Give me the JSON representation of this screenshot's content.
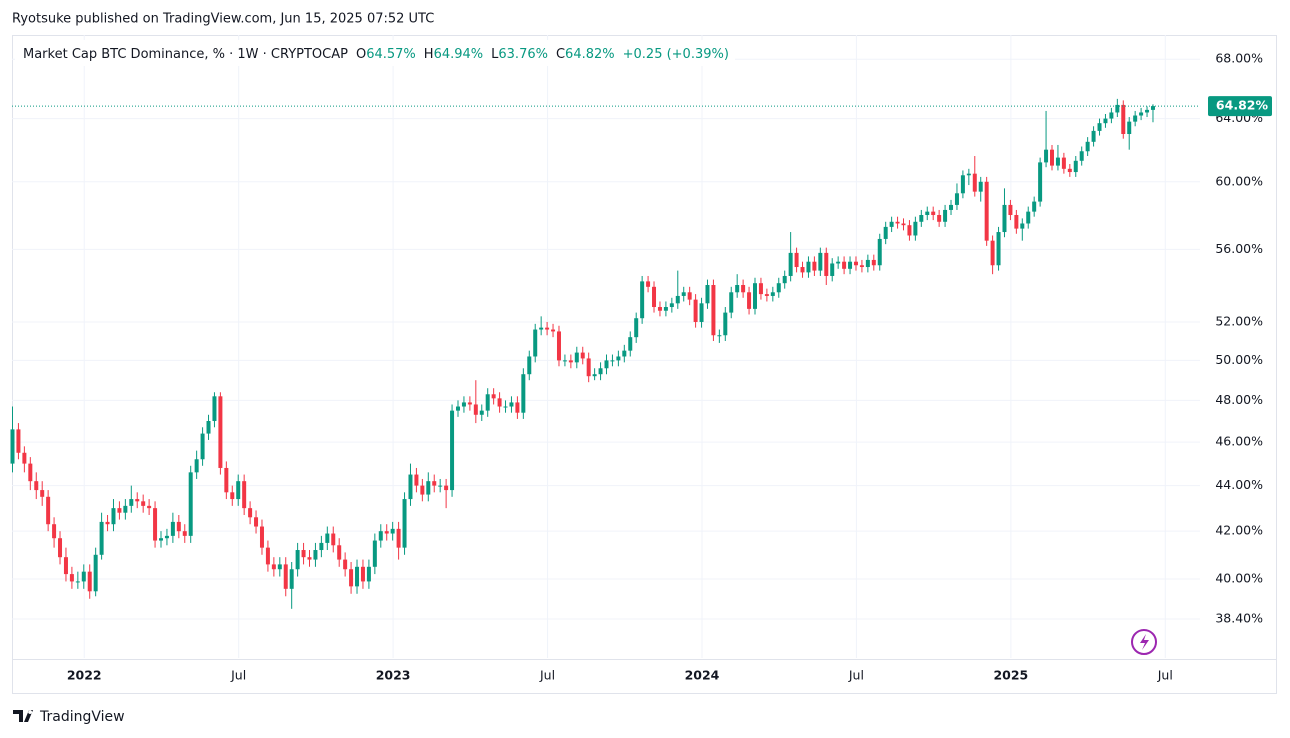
{
  "attribution": "Ryotsuke published on TradingView.com, Jun 15, 2025 07:52 UTC",
  "brand": "TradingView",
  "chart_data": {
    "type": "candlestick",
    "title": "Market Cap BTC Dominance, % · 1W · CRYPTOCAP",
    "legend_values": [
      {
        "label": "O",
        "value": "64.57%"
      },
      {
        "label": "H",
        "value": "64.94%"
      },
      {
        "label": "L",
        "value": "63.76%"
      },
      {
        "label": "C",
        "value": "64.82%"
      }
    ],
    "change": "+0.25 (+0.39%)",
    "last_price_label": "64.82%",
    "up_color": "#089981",
    "down_color": "#f23645",
    "log_scale": true,
    "grid": true,
    "ylim": [
      36.9,
      69.7
    ],
    "yticks": [
      {
        "value": 38.4,
        "label": "38.40%"
      },
      {
        "value": 40,
        "label": "40.00%"
      },
      {
        "value": 42,
        "label": "42.00%"
      },
      {
        "value": 44,
        "label": "44.00%"
      },
      {
        "value": 46,
        "label": "46.00%"
      },
      {
        "value": 48,
        "label": "48.00%"
      },
      {
        "value": 50,
        "label": "50.00%"
      },
      {
        "value": 52,
        "label": "52.00%"
      },
      {
        "value": 56,
        "label": "56.00%"
      },
      {
        "value": 60,
        "label": "60.00%"
      },
      {
        "value": 64,
        "label": "64.00%"
      },
      {
        "value": 68,
        "label": "68.00%"
      }
    ],
    "xlim": [
      0,
      200
    ],
    "xticks": [
      {
        "value": 13,
        "label": "2022"
      },
      {
        "value": 39,
        "label": "Jul"
      },
      {
        "value": 65,
        "label": "2023"
      },
      {
        "value": 91,
        "label": "Jul"
      },
      {
        "value": 117,
        "label": "2024"
      },
      {
        "value": 143,
        "label": "Jul"
      },
      {
        "value": 169,
        "label": "2025"
      },
      {
        "value": 195,
        "label": "Jul"
      }
    ],
    "ohlc": [
      [
        45.0,
        47.7,
        44.6,
        46.6
      ],
      [
        46.6,
        46.9,
        45.2,
        45.5
      ],
      [
        45.5,
        45.8,
        44.6,
        45.0
      ],
      [
        45.0,
        45.3,
        43.8,
        44.2
      ],
      [
        44.2,
        44.6,
        43.4,
        43.8
      ],
      [
        43.8,
        44.2,
        43.1,
        43.5
      ],
      [
        43.5,
        43.8,
        42.0,
        42.3
      ],
      [
        42.3,
        42.6,
        41.3,
        41.7
      ],
      [
        41.7,
        42.0,
        40.6,
        40.9
      ],
      [
        40.9,
        41.3,
        39.9,
        40.2
      ],
      [
        40.2,
        40.5,
        39.6,
        39.9
      ],
      [
        39.9,
        40.3,
        39.6,
        39.9
      ],
      [
        39.9,
        40.6,
        39.6,
        40.3
      ],
      [
        40.3,
        40.6,
        39.2,
        39.5
      ],
      [
        39.5,
        41.3,
        39.3,
        41.0
      ],
      [
        41.0,
        42.8,
        40.8,
        42.4
      ],
      [
        42.4,
        42.7,
        42.0,
        42.3
      ],
      [
        42.3,
        43.4,
        42.0,
        43.0
      ],
      [
        43.0,
        43.3,
        42.5,
        42.8
      ],
      [
        42.8,
        43.4,
        42.5,
        43.1
      ],
      [
        43.1,
        44.0,
        42.8,
        43.4
      ],
      [
        43.4,
        43.7,
        43.0,
        43.3
      ],
      [
        43.3,
        43.6,
        42.8,
        43.1
      ],
      [
        43.1,
        43.4,
        42.7,
        43.0
      ],
      [
        43.0,
        43.3,
        41.3,
        41.6
      ],
      [
        41.6,
        42.0,
        41.3,
        41.7
      ],
      [
        41.7,
        42.1,
        41.4,
        41.8
      ],
      [
        41.8,
        42.8,
        41.5,
        42.4
      ],
      [
        42.4,
        42.7,
        41.7,
        42.0
      ],
      [
        42.0,
        42.3,
        41.5,
        41.8
      ],
      [
        41.8,
        44.9,
        41.5,
        44.6
      ],
      [
        44.6,
        45.6,
        44.3,
        45.2
      ],
      [
        45.2,
        46.7,
        44.9,
        46.4
      ],
      [
        46.4,
        47.3,
        46.1,
        47.0
      ],
      [
        47.0,
        48.4,
        46.7,
        48.2
      ],
      [
        48.2,
        48.4,
        44.5,
        44.8
      ],
      [
        44.8,
        45.1,
        43.4,
        43.7
      ],
      [
        43.7,
        44.0,
        43.1,
        43.4
      ],
      [
        43.4,
        44.5,
        43.1,
        44.2
      ],
      [
        44.2,
        44.5,
        42.7,
        43.0
      ],
      [
        43.0,
        43.3,
        42.3,
        42.6
      ],
      [
        42.6,
        42.9,
        41.9,
        42.2
      ],
      [
        42.2,
        42.5,
        41.0,
        41.3
      ],
      [
        41.3,
        41.6,
        40.3,
        40.6
      ],
      [
        40.6,
        40.9,
        40.1,
        40.4
      ],
      [
        40.4,
        40.9,
        40.1,
        40.6
      ],
      [
        40.6,
        40.9,
        39.3,
        39.6
      ],
      [
        39.6,
        40.7,
        38.8,
        40.4
      ],
      [
        40.4,
        41.5,
        40.1,
        41.2
      ],
      [
        41.2,
        41.5,
        40.6,
        40.9
      ],
      [
        40.9,
        41.2,
        40.5,
        40.8
      ],
      [
        40.8,
        41.5,
        40.5,
        41.2
      ],
      [
        41.2,
        41.8,
        40.9,
        41.5
      ],
      [
        41.5,
        42.2,
        41.2,
        41.9
      ],
      [
        41.9,
        42.2,
        41.1,
        41.4
      ],
      [
        41.4,
        41.7,
        40.5,
        40.8
      ],
      [
        40.8,
        41.1,
        40.1,
        40.4
      ],
      [
        40.4,
        40.7,
        39.4,
        39.7
      ],
      [
        39.7,
        40.8,
        39.4,
        40.5
      ],
      [
        40.5,
        40.8,
        39.6,
        39.9
      ],
      [
        39.9,
        40.8,
        39.6,
        40.5
      ],
      [
        40.5,
        41.9,
        40.2,
        41.6
      ],
      [
        41.6,
        42.3,
        41.3,
        42.0
      ],
      [
        42.0,
        42.3,
        41.6,
        41.9
      ],
      [
        41.9,
        42.4,
        41.6,
        42.1
      ],
      [
        42.1,
        42.4,
        40.8,
        41.3
      ],
      [
        41.3,
        43.7,
        41.0,
        43.4
      ],
      [
        43.4,
        45.0,
        43.1,
        44.5
      ],
      [
        44.5,
        44.8,
        43.7,
        44.0
      ],
      [
        44.0,
        44.3,
        43.3,
        43.6
      ],
      [
        43.6,
        44.6,
        43.3,
        44.2
      ],
      [
        44.2,
        44.5,
        43.7,
        44.0
      ],
      [
        44.0,
        44.3,
        43.7,
        44.0
      ],
      [
        44.0,
        44.3,
        43.0,
        43.8
      ],
      [
        43.8,
        47.8,
        43.5,
        47.5
      ],
      [
        47.5,
        48.0,
        47.2,
        47.7
      ],
      [
        47.7,
        48.2,
        47.4,
        47.9
      ],
      [
        47.9,
        48.2,
        47.5,
        47.8
      ],
      [
        47.8,
        49.0,
        46.9,
        47.3
      ],
      [
        47.3,
        47.8,
        47.0,
        47.5
      ],
      [
        47.5,
        48.6,
        47.2,
        48.3
      ],
      [
        48.3,
        48.6,
        47.8,
        48.1
      ],
      [
        48.1,
        48.4,
        47.4,
        47.7
      ],
      [
        47.7,
        48.0,
        47.4,
        47.7
      ],
      [
        47.7,
        48.2,
        47.4,
        47.9
      ],
      [
        47.9,
        48.2,
        47.1,
        47.4
      ],
      [
        47.4,
        49.6,
        47.1,
        49.3
      ],
      [
        49.3,
        50.5,
        49.0,
        50.2
      ],
      [
        50.2,
        51.9,
        49.9,
        51.6
      ],
      [
        51.6,
        52.3,
        51.3,
        51.7
      ],
      [
        51.7,
        52.0,
        51.3,
        51.6
      ],
      [
        51.6,
        51.9,
        51.2,
        51.5
      ],
      [
        51.5,
        51.8,
        49.7,
        50.0
      ],
      [
        50.0,
        50.3,
        49.7,
        50.0
      ],
      [
        50.0,
        50.3,
        49.6,
        49.9
      ],
      [
        49.9,
        50.7,
        49.6,
        50.4
      ],
      [
        50.4,
        50.7,
        49.8,
        50.1
      ],
      [
        50.1,
        50.4,
        48.9,
        49.2
      ],
      [
        49.2,
        49.6,
        49.0,
        49.3
      ],
      [
        49.3,
        49.9,
        49.0,
        49.6
      ],
      [
        49.6,
        50.3,
        49.3,
        50.0
      ],
      [
        50.0,
        50.3,
        49.7,
        50.0
      ],
      [
        50.0,
        50.5,
        49.7,
        50.2
      ],
      [
        50.2,
        50.8,
        49.9,
        50.5
      ],
      [
        50.5,
        51.5,
        50.2,
        51.2
      ],
      [
        51.2,
        52.5,
        50.9,
        52.2
      ],
      [
        52.2,
        54.5,
        51.9,
        54.2
      ],
      [
        54.2,
        54.5,
        53.6,
        53.9
      ],
      [
        53.9,
        54.2,
        52.5,
        52.8
      ],
      [
        52.8,
        53.1,
        52.3,
        52.6
      ],
      [
        52.6,
        53.1,
        52.3,
        52.8
      ],
      [
        52.8,
        53.3,
        52.5,
        53.0
      ],
      [
        53.0,
        54.8,
        52.7,
        53.4
      ],
      [
        53.4,
        53.9,
        53.1,
        53.6
      ],
      [
        53.6,
        53.9,
        52.9,
        53.2
      ],
      [
        53.2,
        53.5,
        51.7,
        52.0
      ],
      [
        52.0,
        53.3,
        51.7,
        53.0
      ],
      [
        53.0,
        54.3,
        52.7,
        54.0
      ],
      [
        54.0,
        54.3,
        51.0,
        51.3
      ],
      [
        51.3,
        51.6,
        50.9,
        51.3
      ],
      [
        51.3,
        52.8,
        51.0,
        52.5
      ],
      [
        52.5,
        53.9,
        52.2,
        53.6
      ],
      [
        53.6,
        54.6,
        53.3,
        54.0
      ],
      [
        54.0,
        54.3,
        53.3,
        53.6
      ],
      [
        53.6,
        53.9,
        52.4,
        52.7
      ],
      [
        52.7,
        54.4,
        52.4,
        54.1
      ],
      [
        54.1,
        54.4,
        53.2,
        53.5
      ],
      [
        53.5,
        53.8,
        53.1,
        53.4
      ],
      [
        53.4,
        53.9,
        53.1,
        53.6
      ],
      [
        53.6,
        54.4,
        53.3,
        54.1
      ],
      [
        54.1,
        54.8,
        53.8,
        54.5
      ],
      [
        54.5,
        57.0,
        54.2,
        55.8
      ],
      [
        55.8,
        56.1,
        54.7,
        55.0
      ],
      [
        55.0,
        55.3,
        54.4,
        54.7
      ],
      [
        54.7,
        55.6,
        54.4,
        55.3
      ],
      [
        55.3,
        55.6,
        54.5,
        54.8
      ],
      [
        54.8,
        56.1,
        54.5,
        55.8
      ],
      [
        55.8,
        56.1,
        54.0,
        54.5
      ],
      [
        54.5,
        55.5,
        54.2,
        55.2
      ],
      [
        55.2,
        55.6,
        54.9,
        55.3
      ],
      [
        55.3,
        55.6,
        54.6,
        54.9
      ],
      [
        54.9,
        55.6,
        54.6,
        55.3
      ],
      [
        55.3,
        55.6,
        54.8,
        55.1
      ],
      [
        55.1,
        55.4,
        54.7,
        55.0
      ],
      [
        55.0,
        55.7,
        54.7,
        55.4
      ],
      [
        55.4,
        55.7,
        54.8,
        55.1
      ],
      [
        55.1,
        56.9,
        54.8,
        56.6
      ],
      [
        56.6,
        57.6,
        56.3,
        57.3
      ],
      [
        57.3,
        57.9,
        57.0,
        57.6
      ],
      [
        57.6,
        57.9,
        57.2,
        57.5
      ],
      [
        57.5,
        57.8,
        57.1,
        57.4
      ],
      [
        57.4,
        57.7,
        56.5,
        56.8
      ],
      [
        56.8,
        57.9,
        56.5,
        57.6
      ],
      [
        57.6,
        58.3,
        57.3,
        58.0
      ],
      [
        58.0,
        58.5,
        57.7,
        58.2
      ],
      [
        58.2,
        58.5,
        57.7,
        58.0
      ],
      [
        58.0,
        58.3,
        57.3,
        57.6
      ],
      [
        57.6,
        58.6,
        57.3,
        58.3
      ],
      [
        58.3,
        58.9,
        58.0,
        58.6
      ],
      [
        58.6,
        59.9,
        58.3,
        59.3
      ],
      [
        59.3,
        60.7,
        59.0,
        60.4
      ],
      [
        60.4,
        60.8,
        59.8,
        60.5
      ],
      [
        60.5,
        61.6,
        59.1,
        59.4
      ],
      [
        59.4,
        60.3,
        58.8,
        60.0
      ],
      [
        60.0,
        60.3,
        56.2,
        56.5
      ],
      [
        56.5,
        56.8,
        54.6,
        55.1
      ],
      [
        55.1,
        57.3,
        54.8,
        57.0
      ],
      [
        57.0,
        59.6,
        56.7,
        58.6
      ],
      [
        58.6,
        58.9,
        57.7,
        58.0
      ],
      [
        58.0,
        58.3,
        56.9,
        57.2
      ],
      [
        57.2,
        57.8,
        56.5,
        57.5
      ],
      [
        57.5,
        58.5,
        57.2,
        58.2
      ],
      [
        58.2,
        59.1,
        57.9,
        58.8
      ],
      [
        58.8,
        61.5,
        58.5,
        61.2
      ],
      [
        61.2,
        64.5,
        60.9,
        62.0
      ],
      [
        62.0,
        62.3,
        60.7,
        61.0
      ],
      [
        61.0,
        62.3,
        60.7,
        61.5
      ],
      [
        61.5,
        61.8,
        60.5,
        60.8
      ],
      [
        60.8,
        61.1,
        60.3,
        60.6
      ],
      [
        60.6,
        61.6,
        60.3,
        61.3
      ],
      [
        61.3,
        62.2,
        61.0,
        61.9
      ],
      [
        61.9,
        62.8,
        61.6,
        62.5
      ],
      [
        62.5,
        63.5,
        62.2,
        63.2
      ],
      [
        63.2,
        64.0,
        62.9,
        63.7
      ],
      [
        63.7,
        64.3,
        63.4,
        64.0
      ],
      [
        64.0,
        64.7,
        63.7,
        64.4
      ],
      [
        64.4,
        65.3,
        64.1,
        64.9
      ],
      [
        64.9,
        65.2,
        62.7,
        63.0
      ],
      [
        63.0,
        64.1,
        62.0,
        63.8
      ],
      [
        63.8,
        64.5,
        63.5,
        64.2
      ],
      [
        64.2,
        64.7,
        63.9,
        64.4
      ],
      [
        64.4,
        64.8,
        64.1,
        64.57
      ],
      [
        64.57,
        64.94,
        63.76,
        64.82
      ]
    ]
  }
}
